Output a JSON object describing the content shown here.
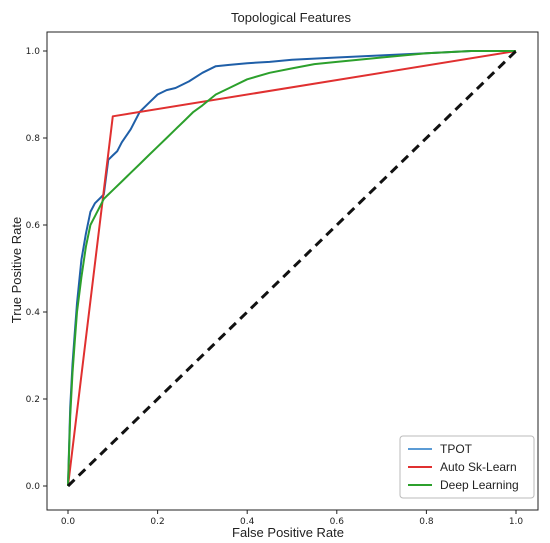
{
  "chart_data": {
    "type": "line",
    "title": "Topological Features",
    "xlabel": "False Positive Rate",
    "ylabel": "True Positive Rate",
    "xlim": [
      0,
      1
    ],
    "ylim": [
      0,
      1
    ],
    "xticks": [
      "0.0",
      "0.2",
      "0.4",
      "0.6",
      "0.8",
      "1.0"
    ],
    "yticks": [
      "0.0",
      "0.2",
      "0.4",
      "0.6",
      "0.8",
      "1.0"
    ],
    "grid": false,
    "legend_position": "bottom-right",
    "series": [
      {
        "name": "TPOT",
        "color": "#1f5fa8",
        "legend_color": "#5b9bd5",
        "x": [
          0,
          0.005,
          0.01,
          0.015,
          0.02,
          0.03,
          0.04,
          0.05,
          0.06,
          0.08,
          0.09,
          0.1,
          0.11,
          0.12,
          0.14,
          0.16,
          0.18,
          0.2,
          0.22,
          0.24,
          0.27,
          0.3,
          0.33,
          0.36,
          0.4,
          0.45,
          0.5,
          0.6,
          0.7,
          0.8,
          0.9,
          1.0
        ],
        "y": [
          0,
          0.18,
          0.28,
          0.35,
          0.42,
          0.52,
          0.58,
          0.63,
          0.65,
          0.67,
          0.75,
          0.76,
          0.77,
          0.79,
          0.82,
          0.86,
          0.88,
          0.9,
          0.91,
          0.915,
          0.93,
          0.95,
          0.965,
          0.968,
          0.972,
          0.975,
          0.98,
          0.985,
          0.99,
          0.995,
          1.0,
          1.0
        ]
      },
      {
        "name": "Auto Sk-Learn",
        "color": "#e03030",
        "legend_color": "#e03030",
        "x": [
          0,
          0.1,
          1.0
        ],
        "y": [
          0,
          0.85,
          1.0
        ]
      },
      {
        "name": "Deep Learning",
        "color": "#2ca02c",
        "legend_color": "#2ca02c",
        "x": [
          0,
          0.005,
          0.01,
          0.015,
          0.02,
          0.03,
          0.04,
          0.05,
          0.06,
          0.07,
          0.08,
          0.09,
          0.1,
          0.12,
          0.14,
          0.16,
          0.18,
          0.2,
          0.22,
          0.24,
          0.26,
          0.28,
          0.3,
          0.33,
          0.36,
          0.4,
          0.45,
          0.5,
          0.55,
          0.6,
          0.7,
          0.8,
          0.9,
          1.0
        ],
        "y": [
          0,
          0.16,
          0.26,
          0.33,
          0.4,
          0.48,
          0.55,
          0.6,
          0.62,
          0.64,
          0.66,
          0.67,
          0.68,
          0.7,
          0.72,
          0.74,
          0.76,
          0.78,
          0.8,
          0.82,
          0.84,
          0.86,
          0.875,
          0.9,
          0.915,
          0.935,
          0.95,
          0.96,
          0.97,
          0.975,
          0.985,
          0.995,
          1.0,
          1.0
        ]
      },
      {
        "name": "",
        "color": "#111111",
        "dashed": true,
        "x": [
          0,
          1
        ],
        "y": [
          0,
          1
        ]
      }
    ]
  }
}
